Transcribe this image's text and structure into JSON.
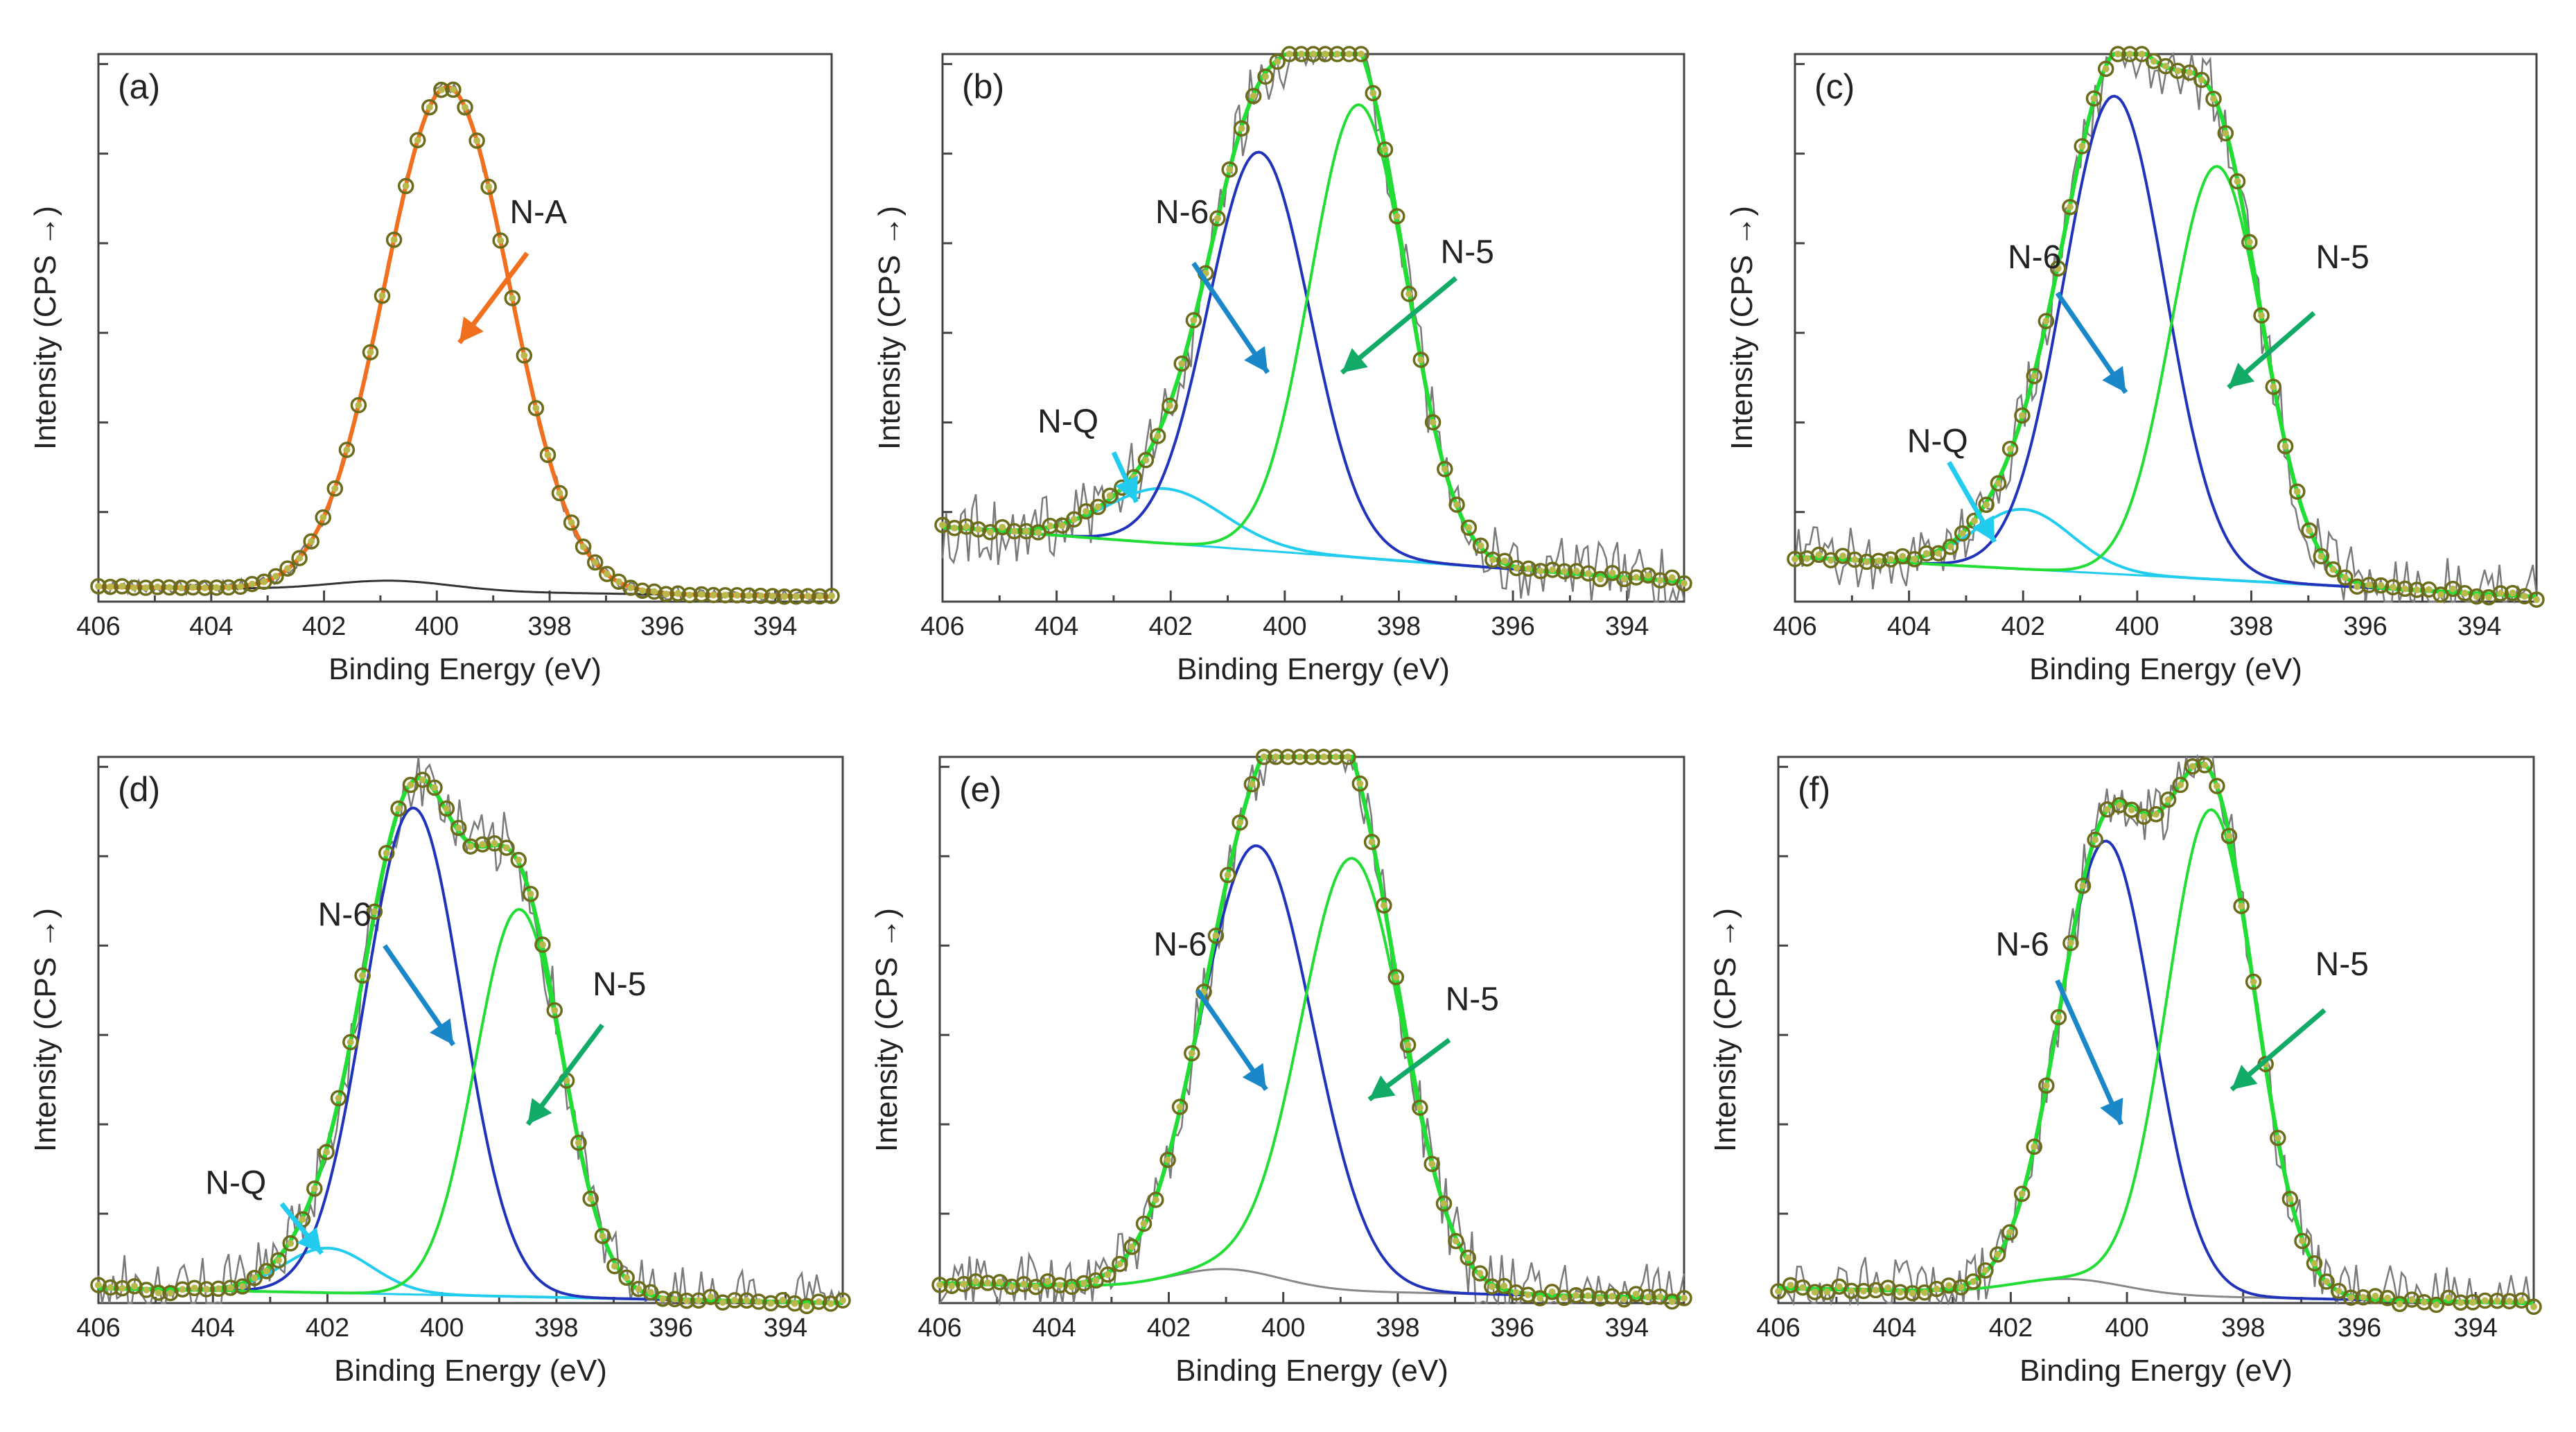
{
  "figure": {
    "label": "XPS N 1s deconvolution panels (a)-(f)"
  },
  "chart_data": [
    {
      "panel": "(a)",
      "type": "line",
      "xlabel": "Binding Energy (eV)",
      "ylabel": "Intensity (CPS →)",
      "xlim": [
        406,
        393
      ],
      "ylim": [
        0,
        1.1
      ],
      "xticks": [
        406,
        404,
        402,
        400,
        398,
        396,
        394
      ],
      "background": {
        "start": 0.03,
        "end": 0.01,
        "bump": 0.02,
        "bump_center": 400.8,
        "bump_width": 2.5,
        "color": "#333333"
      },
      "components": [
        {
          "name": "N-A",
          "center": 399.8,
          "height": 1.0,
          "fwhm": 2.6,
          "color": "#f07020"
        }
      ],
      "envelope_color": "#f07020",
      "noise": 0.01,
      "annotations": [
        {
          "text": "N-A",
          "color": "#f07020",
          "text_x": 398.2,
          "text_y": 0.76,
          "tail_x": 398.4,
          "tail_y": 0.7,
          "head_x": 399.6,
          "head_y": 0.52
        }
      ]
    },
    {
      "panel": "(b)",
      "type": "line",
      "xlabel": "Binding Energy (eV)",
      "ylabel": "Intensity (CPS →)",
      "xlim": [
        406,
        393
      ],
      "ylim": [
        0,
        1.1
      ],
      "xticks": [
        406,
        404,
        402,
        400,
        398,
        396,
        394
      ],
      "background": {
        "start": 0.15,
        "end": 0.04,
        "bump": 0.0,
        "bump_center": 401,
        "bump_width": 2,
        "color": "#22ccee"
      },
      "components": [
        {
          "name": "N-Q",
          "center": 402.1,
          "height": 0.11,
          "fwhm": 2.4,
          "color": "#22ccee"
        },
        {
          "name": "N-6",
          "center": 400.45,
          "height": 0.8,
          "fwhm": 2.1,
          "color": "#2233bb"
        },
        {
          "name": "N-5",
          "center": 398.7,
          "height": 0.91,
          "fwhm": 2.0,
          "color": "#22dd33"
        }
      ],
      "envelope_color": "#22dd33",
      "noise": 0.05,
      "annotations": [
        {
          "text": "N-6",
          "color": "#1a88c8",
          "text_x": 401.8,
          "text_y": 0.76,
          "tail_x": 401.6,
          "tail_y": 0.68,
          "head_x": 400.3,
          "head_y": 0.46
        },
        {
          "text": "N-5",
          "color": "#11aa66",
          "text_x": 396.8,
          "text_y": 0.68,
          "tail_x": 397.0,
          "tail_y": 0.65,
          "head_x": 399.0,
          "head_y": 0.46
        },
        {
          "text": "N-Q",
          "color": "#22ccee",
          "text_x": 403.8,
          "text_y": 0.34,
          "tail_x": 403.0,
          "tail_y": 0.3,
          "head_x": 402.6,
          "head_y": 0.2
        }
      ]
    },
    {
      "panel": "(c)",
      "type": "line",
      "xlabel": "Binding Energy (eV)",
      "ylabel": "Intensity (CPS →)",
      "xlim": [
        406,
        393
      ],
      "ylim": [
        0,
        1.1
      ],
      "xticks": [
        406,
        404,
        402,
        400,
        398,
        396,
        394
      ],
      "background": {
        "start": 0.09,
        "end": 0.01,
        "bump": 0.0,
        "bump_center": 401,
        "bump_width": 2,
        "color": "#22ccee"
      },
      "components": [
        {
          "name": "N-Q",
          "center": 402.0,
          "height": 0.12,
          "fwhm": 2.0,
          "color": "#22ccee"
        },
        {
          "name": "N-6",
          "center": 400.4,
          "height": 0.96,
          "fwhm": 2.1,
          "color": "#2233bb"
        },
        {
          "name": "N-5",
          "center": 398.6,
          "height": 0.83,
          "fwhm": 1.9,
          "color": "#22dd33"
        }
      ],
      "envelope_color": "#22dd33",
      "noise": 0.05,
      "annotations": [
        {
          "text": "N-6",
          "color": "#1a88c8",
          "text_x": 401.8,
          "text_y": 0.67,
          "tail_x": 401.4,
          "tail_y": 0.62,
          "head_x": 400.2,
          "head_y": 0.42
        },
        {
          "text": "N-5",
          "color": "#11aa66",
          "text_x": 396.4,
          "text_y": 0.67,
          "tail_x": 396.9,
          "tail_y": 0.58,
          "head_x": 398.4,
          "head_y": 0.43
        },
        {
          "text": "N-Q",
          "color": "#22ccee",
          "text_x": 403.5,
          "text_y": 0.3,
          "tail_x": 403.3,
          "tail_y": 0.28,
          "head_x": 402.5,
          "head_y": 0.12
        }
      ]
    },
    {
      "panel": "(d)",
      "type": "line",
      "xlabel": "Binding Energy (eV)",
      "ylabel": "Intensity (CPS →)",
      "xlim": [
        406,
        393
      ],
      "ylim": [
        0,
        1.1
      ],
      "xticks": [
        406,
        404,
        402,
        400,
        398,
        396,
        394
      ],
      "background": {
        "start": 0.03,
        "end": 0.0,
        "bump": 0.0,
        "bump_center": 401,
        "bump_width": 2,
        "color": "#22ccee"
      },
      "components": [
        {
          "name": "N-Q",
          "center": 402.0,
          "height": 0.09,
          "fwhm": 1.8,
          "color": "#22ccee"
        },
        {
          "name": "N-6",
          "center": 400.5,
          "height": 0.98,
          "fwhm": 2.0,
          "color": "#2233bb"
        },
        {
          "name": "N-5",
          "center": 398.65,
          "height": 0.78,
          "fwhm": 1.8,
          "color": "#22dd33"
        }
      ],
      "envelope_color": "#22dd33",
      "noise": 0.05,
      "annotations": [
        {
          "text": "N-6",
          "color": "#1a88c8",
          "text_x": 401.7,
          "text_y": 0.76,
          "tail_x": 401.0,
          "tail_y": 0.72,
          "head_x": 399.8,
          "head_y": 0.52
        },
        {
          "text": "N-5",
          "color": "#11aa66",
          "text_x": 396.9,
          "text_y": 0.62,
          "tail_x": 397.2,
          "tail_y": 0.56,
          "head_x": 398.5,
          "head_y": 0.36
        },
        {
          "text": "N-Q",
          "color": "#22ccee",
          "text_x": 403.6,
          "text_y": 0.22,
          "tail_x": 402.8,
          "tail_y": 0.2,
          "head_x": 402.1,
          "head_y": 0.1
        }
      ]
    },
    {
      "panel": "(e)",
      "type": "line",
      "xlabel": "Binding Energy (eV)",
      "ylabel": "Intensity (CPS →)",
      "xlim": [
        406,
        393
      ],
      "ylim": [
        0,
        1.1
      ],
      "xticks": [
        406,
        404,
        402,
        400,
        398,
        396,
        394
      ],
      "background": {
        "start": 0.04,
        "end": 0.01,
        "bump": 0.04,
        "bump_center": 401.0,
        "bump_width": 2.2,
        "color": "#888888"
      },
      "components": [
        {
          "name": "N-6",
          "center": 400.45,
          "height": 0.86,
          "fwhm": 2.3,
          "color": "#2233bb"
        },
        {
          "name": "N-5",
          "center": 398.8,
          "height": 0.87,
          "fwhm": 2.1,
          "color": "#22dd33"
        }
      ],
      "envelope_color": "#22dd33",
      "noise": 0.05,
      "annotations": [
        {
          "text": "N-6",
          "color": "#1a88c8",
          "text_x": 401.8,
          "text_y": 0.7,
          "tail_x": 401.5,
          "tail_y": 0.63,
          "head_x": 400.3,
          "head_y": 0.43
        },
        {
          "text": "N-5",
          "color": "#11aa66",
          "text_x": 396.7,
          "text_y": 0.59,
          "tail_x": 397.1,
          "tail_y": 0.53,
          "head_x": 398.5,
          "head_y": 0.41
        }
      ]
    },
    {
      "panel": "(f)",
      "type": "line",
      "xlabel": "Binding Energy (eV)",
      "ylabel": "Intensity (CPS →)",
      "xlim": [
        406,
        393
      ],
      "ylim": [
        0,
        1.1
      ],
      "xticks": [
        406,
        404,
        402,
        400,
        398,
        396,
        394
      ],
      "background": {
        "start": 0.03,
        "end": 0.0,
        "bump": 0.03,
        "bump_center": 401.0,
        "bump_width": 2.2,
        "color": "#888888"
      },
      "components": [
        {
          "name": "N-6",
          "center": 400.35,
          "height": 0.89,
          "fwhm": 1.9,
          "color": "#2233bb"
        },
        {
          "name": "N-5",
          "center": 398.55,
          "height": 0.98,
          "fwhm": 1.8,
          "color": "#22dd33"
        }
      ],
      "envelope_color": "#22dd33",
      "noise": 0.05,
      "annotations": [
        {
          "text": "N-6",
          "color": "#1a88c8",
          "text_x": 401.8,
          "text_y": 0.7,
          "tail_x": 401.2,
          "tail_y": 0.65,
          "head_x": 400.1,
          "head_y": 0.36
        },
        {
          "text": "N-5",
          "color": "#11aa66",
          "text_x": 396.3,
          "text_y": 0.66,
          "tail_x": 396.6,
          "tail_y": 0.59,
          "head_x": 398.2,
          "head_y": 0.43
        }
      ]
    }
  ],
  "palette": {
    "marker_edge": "#6b6b1a",
    "marker_fill": "#b9b84a",
    "frame": "#444444"
  }
}
